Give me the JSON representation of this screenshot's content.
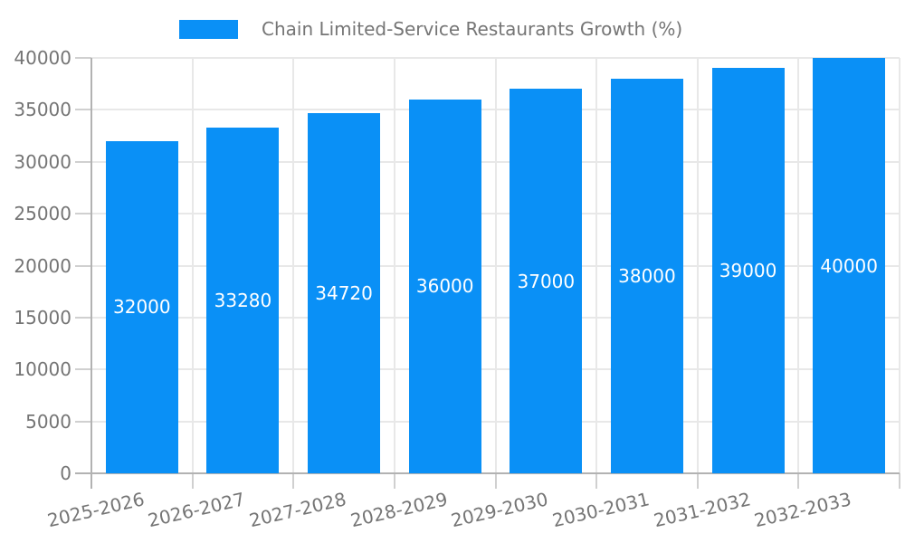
{
  "chart_data": {
    "type": "bar",
    "title": "",
    "legend": {
      "position": "top",
      "entries": [
        {
          "label": "Chain Limited-Service Restaurants Growth (%)",
          "color": "#0A90F6"
        }
      ]
    },
    "categories": [
      "2025-2026",
      "2026-2027",
      "2027-2028",
      "2028-2029",
      "2029-2030",
      "2030-2031",
      "2031-2032",
      "2032-2033"
    ],
    "series": [
      {
        "name": "Chain Limited-Service Restaurants Growth (%)",
        "values": [
          32000,
          33280,
          34720,
          36000,
          37000,
          38000,
          39000,
          40000
        ]
      }
    ],
    "bar_value_labels": [
      "32000",
      "33280",
      "34720",
      "36000",
      "37000",
      "38000",
      "39000",
      "40000"
    ],
    "xlabel": "",
    "ylabel": "",
    "ylim": [
      0,
      40000
    ],
    "yticks": [
      0,
      5000,
      10000,
      15000,
      20000,
      25000,
      30000,
      35000,
      40000
    ],
    "grid": true,
    "x_tick_rotation_deg": -13,
    "colors": {
      "bar": "#0A90F6",
      "bar_value_text": "#ffffff",
      "axis_text": "#757575",
      "gridline": "#e8e8e8",
      "tick_stub": "#d0d0d0",
      "axis_line": "#b2b2b2",
      "background": "#ffffff"
    }
  }
}
